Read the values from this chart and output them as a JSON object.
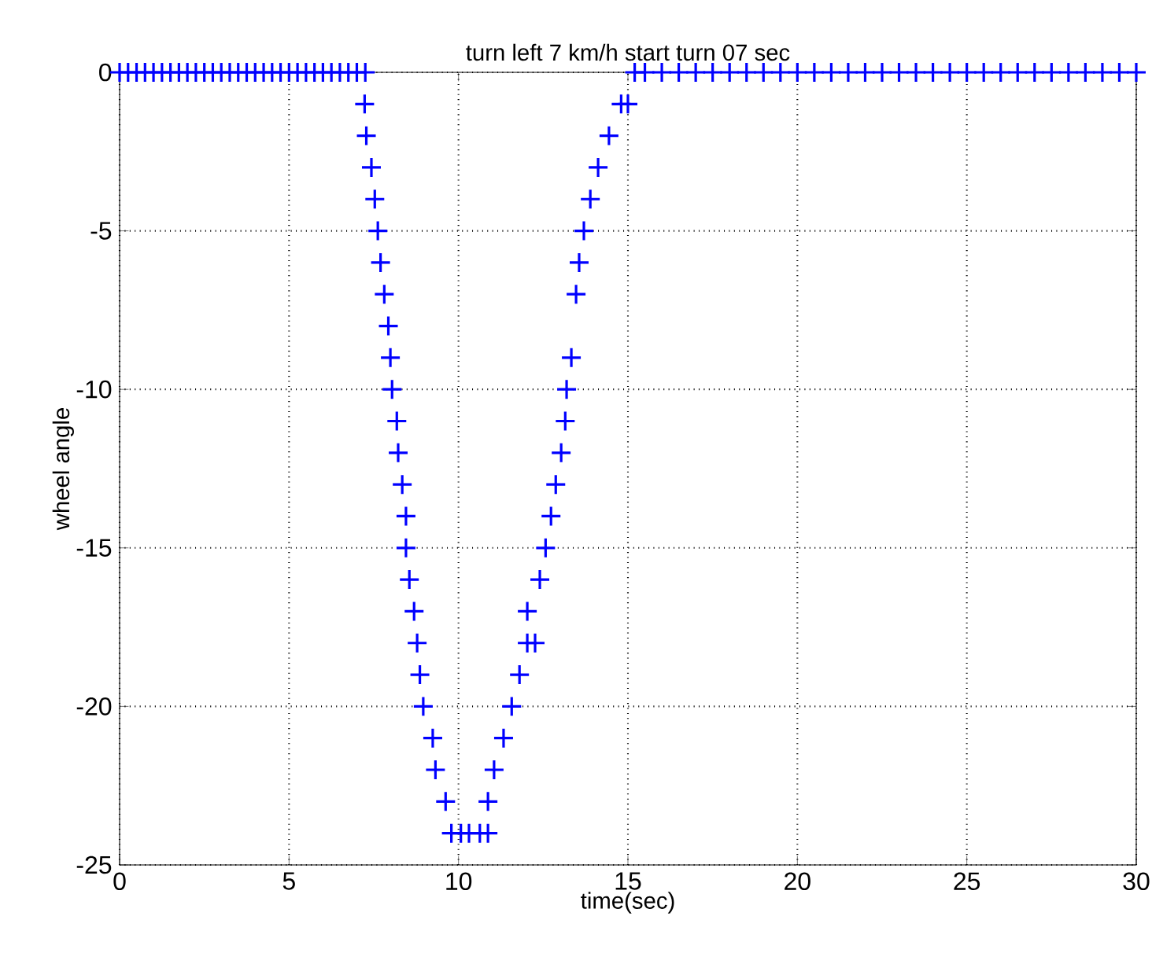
{
  "chart_data": {
    "type": "scatter",
    "title": "turn left 7 km/h start turn 07 sec",
    "xlabel": "time(sec)",
    "ylabel": "wheel angle",
    "x": [
      0,
      0.25,
      0.5,
      0.75,
      1,
      1.25,
      1.5,
      1.75,
      2,
      2.25,
      2.5,
      2.75,
      3,
      3.25,
      3.5,
      3.75,
      4,
      4.25,
      4.5,
      4.75,
      5,
      5.25,
      5.5,
      5.75,
      6,
      6.25,
      6.5,
      6.75,
      7,
      7.25,
      7.23,
      7.28,
      7.43,
      7.53,
      7.62,
      7.7,
      7.81,
      7.93,
      7.99,
      8.04,
      8.18,
      8.22,
      8.34,
      8.45,
      8.45,
      8.55,
      8.69,
      8.78,
      8.86,
      8.96,
      9.24,
      9.32,
      9.62,
      9.79,
      10.07,
      10.31,
      10.63,
      10.87,
      10.87,
      11.05,
      11.33,
      11.57,
      11.8,
      12.03,
      12.26,
      12.03,
      12.4,
      12.57,
      12.73,
      12.87,
      13.03,
      13.15,
      13.19,
      13.33,
      13.47,
      13.56,
      13.7,
      13.89,
      14.12,
      14.44,
      14.8,
      15.0,
      15.2,
      15.5,
      16,
      16.5,
      17,
      17.5,
      18,
      18.5,
      19,
      19.5,
      20,
      20.5,
      21,
      21.5,
      22,
      22.5,
      23,
      23.5,
      24,
      24.5,
      25,
      25.5,
      26,
      26.5,
      27,
      27.5,
      28,
      28.5,
      29,
      29.5,
      30
    ],
    "values": [
      0,
      0,
      0,
      0,
      0,
      0,
      0,
      0,
      0,
      0,
      0,
      0,
      0,
      0,
      0,
      0,
      0,
      0,
      0,
      0,
      0,
      0,
      0,
      0,
      0,
      0,
      0,
      0,
      0,
      0,
      -1,
      -2,
      -3,
      -4,
      -5,
      -6,
      -7,
      -8,
      -9,
      -10,
      -11,
      -12,
      -13,
      -14,
      -15,
      -16,
      -17,
      -18,
      -19,
      -20,
      -21,
      -22,
      -23,
      -24,
      -24,
      -24,
      -24,
      -24,
      -23,
      -22,
      -21,
      -20,
      -19,
      -18,
      -18,
      -17,
      -16,
      -15,
      -14,
      -13,
      -12,
      -11,
      -10,
      -9,
      -7,
      -6,
      -5,
      -4,
      -3,
      -2,
      -1,
      -1,
      0,
      0,
      0,
      0,
      0,
      0,
      0,
      0,
      0,
      0,
      0,
      0,
      0,
      0,
      0,
      0,
      0,
      0,
      0,
      0,
      0,
      0,
      0,
      0,
      0,
      0,
      0,
      0,
      0,
      0,
      0
    ],
    "color": "#0000ff",
    "marker": "cross",
    "grid": true,
    "xlim": [
      0,
      30
    ],
    "xticks": [
      0,
      5,
      10,
      15,
      20,
      25,
      30
    ],
    "ylim": [
      -25,
      0
    ],
    "yticks": [
      0,
      -5,
      -10,
      -15,
      -20,
      -25
    ]
  }
}
